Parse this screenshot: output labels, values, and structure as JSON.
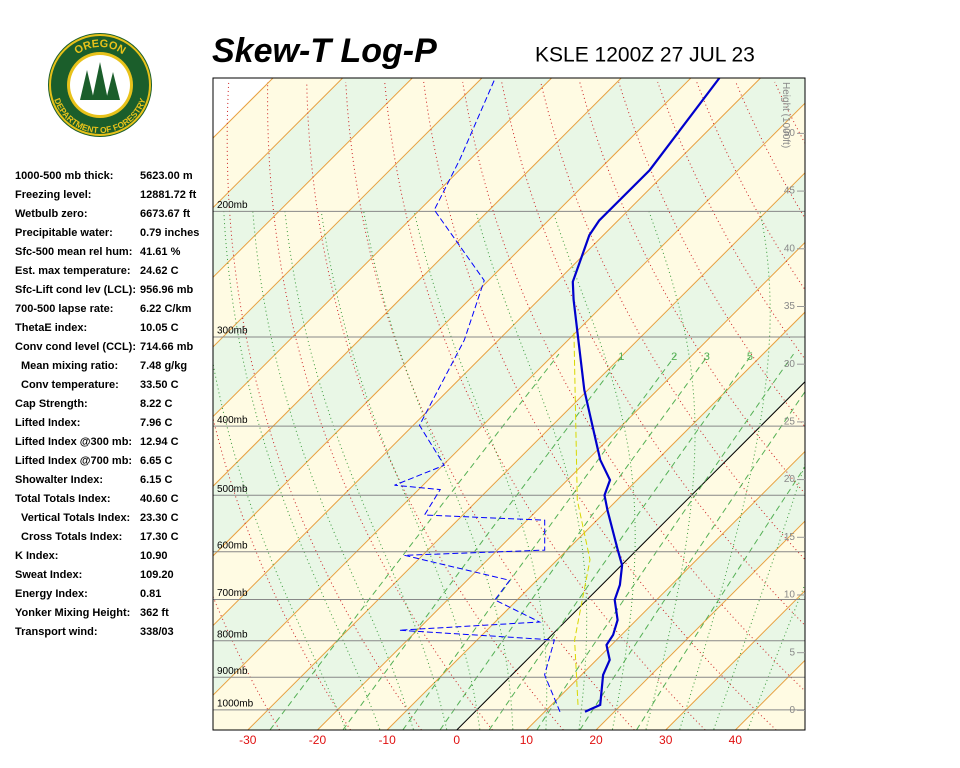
{
  "logo": {
    "top": "OREGON",
    "bottom": "DEPARTMENT OF FORESTRY"
  },
  "indices": [
    {
      "label": "1000-500 mb thick:",
      "value": "5623.00 m",
      "indent": false
    },
    {
      "label": "Freezing level:",
      "value": "12881.72 ft",
      "indent": false
    },
    {
      "label": "Wetbulb zero:",
      "value": "6673.67 ft",
      "indent": false
    },
    {
      "label": "Precipitable water:",
      "value": "0.79 inches",
      "indent": false
    },
    {
      "label": "Sfc-500 mean rel hum:",
      "value": "41.61 %",
      "indent": false
    },
    {
      "label": "Est. max temperature:",
      "value": "24.62 C",
      "indent": false
    },
    {
      "label": "Sfc-Lift cond lev (LCL):",
      "value": "956.96 mb",
      "indent": false
    },
    {
      "label": "700-500 lapse rate:",
      "value": "6.22 C/km",
      "indent": false
    },
    {
      "label": "ThetaE index:",
      "value": "10.05 C",
      "indent": false
    },
    {
      "label": "Conv cond level (CCL):",
      "value": "714.66 mb",
      "indent": false
    },
    {
      "label": "Mean mixing ratio:",
      "value": "7.48 g/kg",
      "indent": true
    },
    {
      "label": "Conv temperature:",
      "value": "33.50 C",
      "indent": true
    },
    {
      "label": "Cap Strength:",
      "value": "8.22 C",
      "indent": false
    },
    {
      "label": "Lifted Index:",
      "value": "7.96 C",
      "indent": false
    },
    {
      "label": "Lifted Index @300 mb:",
      "value": "12.94 C",
      "indent": false
    },
    {
      "label": "Lifted Index @700 mb:",
      "value": "6.65 C",
      "indent": false
    },
    {
      "label": "Showalter Index:",
      "value": "6.15 C",
      "indent": false
    },
    {
      "label": "Total Totals Index:",
      "value": "40.60 C",
      "indent": false
    },
    {
      "label": "Vertical Totals Index:",
      "value": "23.30 C",
      "indent": true
    },
    {
      "label": "Cross Totals Index:",
      "value": "17.30 C",
      "indent": true
    },
    {
      "label": "K Index:",
      "value": "10.90",
      "indent": false
    },
    {
      "label": "Sweat Index:",
      "value": "109.20",
      "indent": false
    },
    {
      "label": "Energy Index:",
      "value": "0.81",
      "indent": false
    },
    {
      "label": "Yonker Mixing Height:",
      "value": "362 ft",
      "indent": false
    },
    {
      "label": "Transport wind:",
      "value": "338/03",
      "indent": false
    }
  ],
  "chart_data": {
    "type": "skewt",
    "title": "Skew-T Log-P",
    "subtitle": "KSLE 1200Z 27 JUL 23",
    "xlim": [
      -35,
      50
    ],
    "xticks": [
      -30,
      -20,
      -10,
      0,
      10,
      20,
      30,
      40
    ],
    "ylim": [
      1067,
      130
    ],
    "log_y": true,
    "yticks": [
      {
        "value": 1000,
        "label": "1000mb"
      },
      {
        "value": 900,
        "label": "900mb"
      },
      {
        "value": 800,
        "label": "800mb"
      },
      {
        "value": 700,
        "label": "700mb"
      },
      {
        "value": 600,
        "label": "600mb"
      },
      {
        "value": 500,
        "label": "500mb"
      },
      {
        "value": 400,
        "label": "400mb"
      },
      {
        "value": 300,
        "label": "300mb"
      },
      {
        "value": 200,
        "label": "200mb"
      }
    ],
    "y2label": "Height (1000ft)",
    "y2lim": [
      -1.7,
      54.8
    ],
    "y2ticks": [
      0,
      5,
      10,
      15,
      20,
      25,
      30,
      35,
      40,
      45,
      50
    ],
    "mixing_ratio_labels": [
      "1",
      "2",
      "3",
      "5"
    ],
    "series": [
      {
        "color": "#0000cc",
        "dash": false,
        "pressure": [
          1006,
          984,
          893,
          851,
          811,
          785,
          748,
          701,
          668,
          627,
          597,
          525,
          500,
          476,
          446,
          356,
          266,
          251,
          216,
          206,
          175,
          130
        ],
        "values": [
          15.8,
          17.0,
          13.1,
          11.9,
          9.3,
          8.8,
          7.3,
          4.0,
          2.6,
          0.1,
          -2.7,
          -9.9,
          -12.5,
          -13.9,
          -18.2,
          -30.5,
          -45.0,
          -47.7,
          -52.0,
          -52.7,
          -52.7,
          -55.9
        ]
      },
      {
        "color": "#0000ff",
        "dash": true,
        "pressure": [
          1006,
          893,
          798,
          773,
          753,
          701,
          658,
          607,
          597,
          542,
          533,
          491,
          484,
          454,
          399,
          303,
          250,
          199,
          169,
          131
        ],
        "values": [
          12.2,
          4.7,
          1.1,
          -22.6,
          -3.6,
          -13.2,
          -13.9,
          -32.6,
          -13.2,
          -17.5,
          -35.5,
          -36.9,
          -44.1,
          -39.8,
          -49.1,
          -54.9,
          -60.6,
          -77.9,
          -81.5,
          -87.9
        ]
      },
      {
        "color": "#d8d800",
        "dash": true,
        "pressure": [
          984,
          798,
          616,
          508,
          294
        ],
        "values": [
          13.8,
          4.0,
          -5.3,
          -15.7,
          -40.5
        ]
      }
    ]
  }
}
